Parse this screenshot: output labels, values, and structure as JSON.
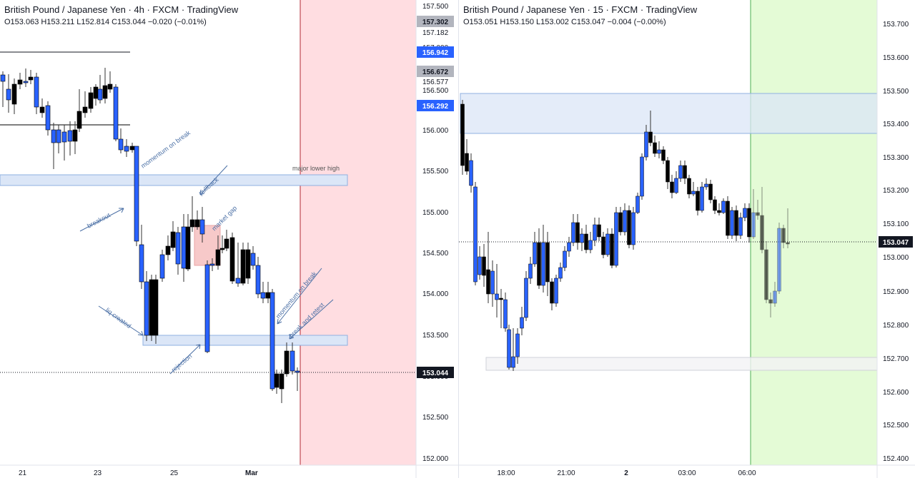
{
  "left_chart": {
    "title": "British Pound / Japanese Yen · 4h · FXCM · TradingView",
    "ohlc": {
      "open": "O153.063",
      "high": "H153.211",
      "low": "L152.814",
      "close": "C153.044",
      "change": "−0.020 (−0.01%)"
    },
    "price_labels": [
      "157.500",
      "157.182",
      "157.000",
      "156.577",
      "156.500",
      "156.000",
      "155.500",
      "155.000",
      "154.500",
      "154.000",
      "153.500",
      "153.000",
      "152.500",
      "152.000"
    ],
    "price_badges": [
      {
        "text": "157.302",
        "color": "#b2b5be",
        "text_color": "#131722"
      },
      {
        "text": "156.942",
        "color": "#2962ff",
        "text_color": "#ffffff"
      },
      {
        "text": "156.672",
        "color": "#b2b5be",
        "text_color": "#131722"
      },
      {
        "text": "156.292",
        "color": "#2962ff",
        "text_color": "#ffffff"
      },
      {
        "text": "153.044",
        "color": "#131722",
        "text_color": "#ffffff"
      }
    ],
    "date_labels": [
      "21",
      "23",
      "25",
      "Mar"
    ],
    "annotations": [
      "major lower high",
      "momentum on break",
      "pullback",
      "breakout",
      "market gap",
      "momentum on break",
      "break and retest",
      "liq created",
      "rejection"
    ],
    "colors": {
      "up": "#2962ff",
      "down": "#000000",
      "zone": "#dbe6f7",
      "zone_border": "#8fb0e0",
      "forecast": "#ffd9de",
      "gap": "#f7c9c9"
    }
  },
  "right_chart": {
    "title": "British Pound / Japanese Yen · 15 · FXCM · TradingView",
    "ohlc": {
      "open": "O153.051",
      "high": "H153.150",
      "low": "L153.002",
      "close": "C153.047",
      "change": "−0.004 (−0.00%)"
    },
    "price_labels": [
      "153.700",
      "153.600",
      "153.500",
      "153.400",
      "153.300",
      "153.200",
      "153.100",
      "153.000",
      "152.900",
      "152.800",
      "152.700",
      "152.600",
      "152.500",
      "152.400"
    ],
    "price_badge": {
      "text": "153.047",
      "color": "#131722",
      "text_color": "#ffffff"
    },
    "time_labels": [
      "18:00",
      "21:00",
      "2",
      "03:00",
      "06:00"
    ],
    "colors": {
      "up": "#2962ff",
      "down": "#000000",
      "zone": "#dbe6f7",
      "forecast": "#e4fbd6",
      "vline": "#4caf50"
    }
  }
}
